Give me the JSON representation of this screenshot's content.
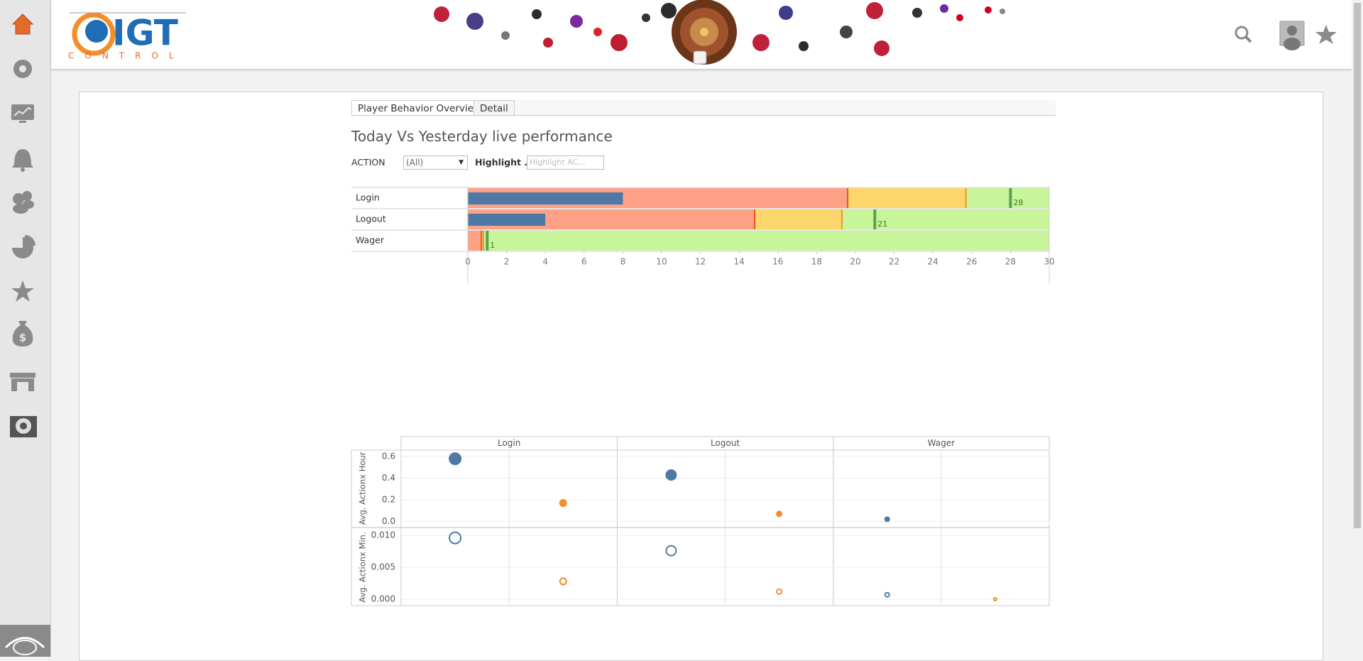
{
  "logo": {
    "brand": "IGT",
    "tagline": "CONTROL"
  },
  "tabs": [
    "Player Behavior Overview",
    "Detail"
  ],
  "dashboard_title": "Today Vs Yesterday live performance",
  "filters": {
    "action_label": "ACTION",
    "action_value": "(All)",
    "highlight_label": "Highlight ...",
    "highlight_placeholder": "Highlight AC..."
  },
  "chart_data": [
    {
      "type": "bullet",
      "categories": [
        "Login",
        "Logout",
        "Wager"
      ],
      "values": [
        8,
        4,
        0
      ],
      "color": "#4e79a7",
      "targets": [
        28,
        21,
        1
      ],
      "target_color": "#59a14f",
      "ranges": [
        {
          "color": "#fca086",
          "line_color": "#f0502a",
          "values": [
            19.6,
            14.8,
            0.7
          ]
        },
        {
          "color": "#fdd66b",
          "line_color": "#f28e2b",
          "values": [
            25.7,
            19.3,
            0.8
          ]
        }
      ],
      "fill_color": "#c8f59a",
      "xlim": [
        0,
        30
      ],
      "xticks": [
        0,
        2,
        4,
        6,
        8,
        10,
        12,
        14,
        16,
        18,
        20,
        22,
        24,
        26,
        28,
        30
      ]
    },
    {
      "type": "scatter",
      "columns": [
        "Login",
        "Logout",
        "Wager"
      ],
      "rows": [
        {
          "label": "Avg. Actionx Hour",
          "ylim": [
            -0.05,
            0.66
          ],
          "yticks": [
            {
              "value": 0,
              "label": "0.0"
            },
            0.2,
            0.4,
            0.6
          ],
          "filled": true,
          "series": [
            {
              "color": "#4e79a7",
              "values": [
                0.58,
                0.43,
                0.02
              ]
            },
            {
              "color": "#f28e2b",
              "values": [
                0.17,
                0.07,
                null
              ]
            }
          ]
        },
        {
          "label": "Avg. Actionx Min.",
          "ylim": [
            -0.001,
            0.011
          ],
          "yticks": [
            {
              "value": 0,
              "label": "0.000"
            },
            {
              "value": 0.005,
              "label": "0.005"
            },
            {
              "value": 0.01,
              "label": "0.010"
            }
          ],
          "filled": false,
          "series": [
            {
              "color": "#4e79a7",
              "values": [
                0.0096,
                0.0076,
                0.0007
              ]
            },
            {
              "color": "#f28e2b",
              "values": [
                0.0028,
                0.0012,
                0
              ]
            }
          ]
        }
      ]
    }
  ]
}
